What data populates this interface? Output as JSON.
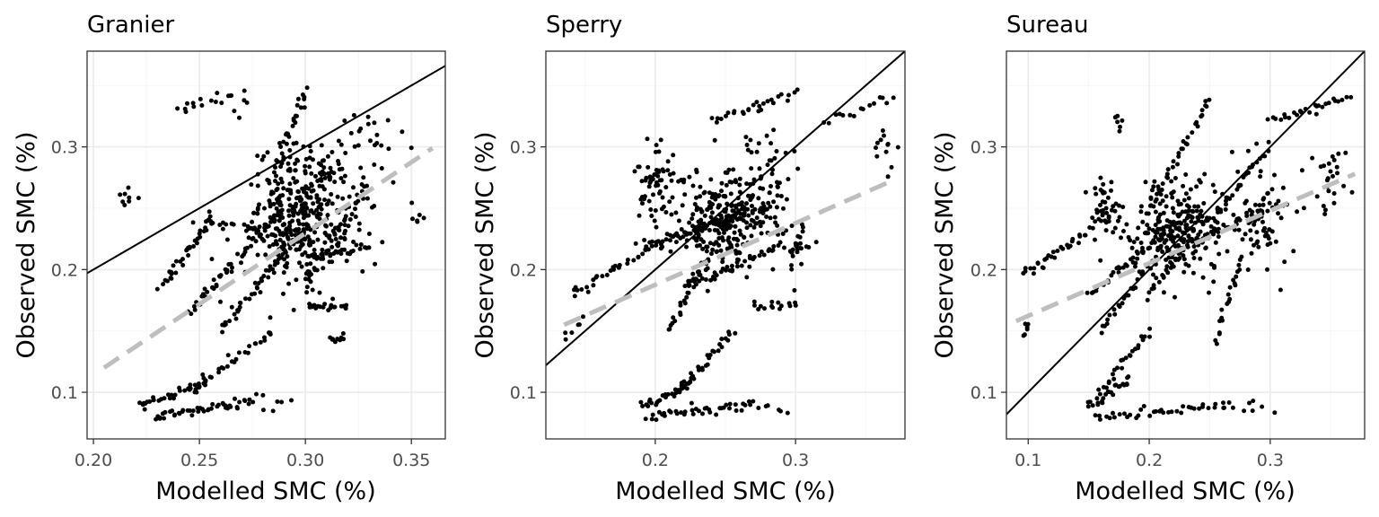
{
  "chart_data": [
    {
      "type": "scatter",
      "title": "Granier",
      "xlabel": "Modelled SMC (%)",
      "ylabel": "Observed SMC (%)",
      "xlim": [
        0.197,
        0.366
      ],
      "ylim": [
        0.062,
        0.378
      ],
      "xticks": [
        0.2,
        0.25,
        0.3,
        0.35
      ],
      "xtick_labels": [
        "0.20",
        "0.25",
        "0.30",
        "0.35"
      ],
      "yticks": [
        0.1,
        0.2,
        0.3
      ],
      "ytick_labels": [
        "0.1",
        "0.2",
        "0.3"
      ],
      "identity_line": [
        [
          0.197,
          0.197
        ],
        [
          0.366,
          0.366
        ]
      ],
      "regression_line": [
        [
          0.205,
          0.12
        ],
        [
          0.36,
          0.299
        ]
      ],
      "colors": {
        "points": "#000000",
        "identity": "#000000",
        "regression": "#bebebe"
      },
      "grid": true,
      "clusters": [
        {
          "kind": "segment",
          "from": [
            0.228,
            0.08
          ],
          "to": [
            0.275,
            0.092
          ],
          "n": 45
        },
        {
          "kind": "segment",
          "from": [
            0.222,
            0.088
          ],
          "to": [
            0.255,
            0.11
          ],
          "n": 35
        },
        {
          "kind": "segment",
          "from": [
            0.245,
            0.1
          ],
          "to": [
            0.285,
            0.15
          ],
          "n": 30
        },
        {
          "kind": "segment",
          "from": [
            0.26,
            0.15
          ],
          "to": [
            0.3,
            0.235
          ],
          "n": 45
        },
        {
          "kind": "segment",
          "from": [
            0.245,
            0.165
          ],
          "to": [
            0.29,
            0.25
          ],
          "n": 50
        },
        {
          "kind": "segment",
          "from": [
            0.232,
            0.185
          ],
          "to": [
            0.255,
            0.24
          ],
          "n": 35
        },
        {
          "kind": "segment",
          "from": [
            0.25,
            0.24
          ],
          "to": [
            0.3,
            0.225
          ],
          "n": 30
        },
        {
          "kind": "segment",
          "from": [
            0.3,
            0.17
          ],
          "to": [
            0.32,
            0.17
          ],
          "n": 20
        },
        {
          "kind": "segment",
          "from": [
            0.312,
            0.145
          ],
          "to": [
            0.318,
            0.14
          ],
          "n": 8
        },
        {
          "kind": "segment",
          "from": [
            0.3,
            0.19
          ],
          "to": [
            0.33,
            0.27
          ],
          "n": 40
        },
        {
          "kind": "segment",
          "from": [
            0.24,
            0.33
          ],
          "to": [
            0.256,
            0.34
          ],
          "n": 10
        },
        {
          "kind": "segment",
          "from": [
            0.285,
            0.28
          ],
          "to": [
            0.3,
            0.345
          ],
          "n": 30
        },
        {
          "kind": "segment",
          "from": [
            0.305,
            0.21
          ],
          "to": [
            0.33,
            0.22
          ],
          "n": 20
        },
        {
          "kind": "cloud",
          "center": [
            0.3,
            0.255
          ],
          "spread": [
            0.018,
            0.038
          ],
          "n": 260
        },
        {
          "kind": "cloud",
          "center": [
            0.295,
            0.22
          ],
          "spread": [
            0.028,
            0.04
          ],
          "n": 130
        },
        {
          "kind": "cloud",
          "center": [
            0.212,
            0.255
          ],
          "spread": [
            0.008,
            0.008
          ],
          "n": 8
        },
        {
          "kind": "cloud",
          "center": [
            0.33,
            0.3
          ],
          "spread": [
            0.015,
            0.03
          ],
          "n": 25
        },
        {
          "kind": "cloud",
          "center": [
            0.285,
            0.09
          ],
          "spread": [
            0.012,
            0.008
          ],
          "n": 8
        },
        {
          "kind": "cloud",
          "center": [
            0.265,
            0.34
          ],
          "spread": [
            0.012,
            0.015
          ],
          "n": 10
        },
        {
          "kind": "cloud",
          "center": [
            0.35,
            0.245
          ],
          "spread": [
            0.008,
            0.015
          ],
          "n": 6
        }
      ]
    },
    {
      "type": "scatter",
      "title": "Sperry",
      "xlabel": "Modelled SMC (%)",
      "ylabel": "Observed SMC (%)",
      "xlim": [
        0.122,
        0.378
      ],
      "ylim": [
        0.062,
        0.378
      ],
      "xticks": [
        0.2,
        0.3
      ],
      "xtick_labels": [
        "0.2",
        "0.3"
      ],
      "yticks": [
        0.1,
        0.2,
        0.3
      ],
      "ytick_labels": [
        "0.1",
        "0.2",
        "0.3"
      ],
      "identity_line": [
        [
          0.122,
          0.122
        ],
        [
          0.378,
          0.378
        ]
      ],
      "regression_line": [
        [
          0.135,
          0.155
        ],
        [
          0.368,
          0.272
        ]
      ],
      "colors": {
        "points": "#000000",
        "identity": "#000000",
        "regression": "#bebebe"
      },
      "grid": true,
      "clusters": [
        {
          "kind": "segment",
          "from": [
            0.195,
            0.08
          ],
          "to": [
            0.27,
            0.09
          ],
          "n": 40
        },
        {
          "kind": "segment",
          "from": [
            0.19,
            0.088
          ],
          "to": [
            0.23,
            0.11
          ],
          "n": 30
        },
        {
          "kind": "segment",
          "from": [
            0.215,
            0.1
          ],
          "to": [
            0.255,
            0.15
          ],
          "n": 30
        },
        {
          "kind": "segment",
          "from": [
            0.135,
            0.145
          ],
          "to": [
            0.15,
            0.16
          ],
          "n": 6
        },
        {
          "kind": "segment",
          "from": [
            0.14,
            0.18
          ],
          "to": [
            0.22,
            0.23
          ],
          "n": 40
        },
        {
          "kind": "segment",
          "from": [
            0.19,
            0.22
          ],
          "to": [
            0.28,
            0.25
          ],
          "n": 50
        },
        {
          "kind": "segment",
          "from": [
            0.21,
            0.15
          ],
          "to": [
            0.24,
            0.215
          ],
          "n": 30
        },
        {
          "kind": "segment",
          "from": [
            0.22,
            0.185
          ],
          "to": [
            0.29,
            0.22
          ],
          "n": 40
        },
        {
          "kind": "segment",
          "from": [
            0.27,
            0.17
          ],
          "to": [
            0.3,
            0.17
          ],
          "n": 15
        },
        {
          "kind": "segment",
          "from": [
            0.24,
            0.32
          ],
          "to": [
            0.3,
            0.345
          ],
          "n": 25
        },
        {
          "kind": "segment",
          "from": [
            0.32,
            0.32
          ],
          "to": [
            0.37,
            0.34
          ],
          "n": 15
        },
        {
          "kind": "cloud",
          "center": [
            0.245,
            0.24
          ],
          "spread": [
            0.03,
            0.035
          ],
          "n": 230
        },
        {
          "kind": "cloud",
          "center": [
            0.2,
            0.27
          ],
          "spread": [
            0.012,
            0.025
          ],
          "n": 60
        },
        {
          "kind": "cloud",
          "center": [
            0.275,
            0.27
          ],
          "spread": [
            0.025,
            0.04
          ],
          "n": 70
        },
        {
          "kind": "cloud",
          "center": [
            0.3,
            0.22
          ],
          "spread": [
            0.012,
            0.02
          ],
          "n": 30
        },
        {
          "kind": "cloud",
          "center": [
            0.36,
            0.3
          ],
          "spread": [
            0.01,
            0.02
          ],
          "n": 12
        },
        {
          "kind": "cloud",
          "center": [
            0.28,
            0.088
          ],
          "spread": [
            0.01,
            0.008
          ],
          "n": 6
        }
      ]
    },
    {
      "type": "scatter",
      "title": "Sureau",
      "xlabel": "Modelled SMC (%)",
      "ylabel": "Observed SMC (%)",
      "xlim": [
        0.082,
        0.378
      ],
      "ylim": [
        0.062,
        0.378
      ],
      "xticks": [
        0.1,
        0.2,
        0.3
      ],
      "xtick_labels": [
        "0.1",
        "0.2",
        "0.3"
      ],
      "yticks": [
        0.1,
        0.2,
        0.3
      ],
      "ytick_labels": [
        "0.1",
        "0.2",
        "0.3"
      ],
      "identity_line": [
        [
          0.082,
          0.082
        ],
        [
          0.378,
          0.378
        ]
      ],
      "regression_line": [
        [
          0.09,
          0.158
        ],
        [
          0.37,
          0.278
        ]
      ],
      "colors": {
        "points": "#000000",
        "identity": "#000000",
        "regression": "#bebebe"
      },
      "grid": true,
      "clusters": [
        {
          "kind": "segment",
          "from": [
            0.095,
            0.145
          ],
          "to": [
            0.1,
            0.155
          ],
          "n": 6
        },
        {
          "kind": "segment",
          "from": [
            0.095,
            0.195
          ],
          "to": [
            0.15,
            0.23
          ],
          "n": 30
        },
        {
          "kind": "segment",
          "from": [
            0.155,
            0.08
          ],
          "to": [
            0.27,
            0.09
          ],
          "n": 40
        },
        {
          "kind": "segment",
          "from": [
            0.15,
            0.088
          ],
          "to": [
            0.185,
            0.11
          ],
          "n": 25
        },
        {
          "kind": "segment",
          "from": [
            0.16,
            0.1
          ],
          "to": [
            0.2,
            0.15
          ],
          "n": 25
        },
        {
          "kind": "segment",
          "from": [
            0.15,
            0.18
          ],
          "to": [
            0.24,
            0.25
          ],
          "n": 45
        },
        {
          "kind": "segment",
          "from": [
            0.16,
            0.15
          ],
          "to": [
            0.22,
            0.23
          ],
          "n": 35
        },
        {
          "kind": "segment",
          "from": [
            0.2,
            0.18
          ],
          "to": [
            0.3,
            0.3
          ],
          "n": 50
        },
        {
          "kind": "segment",
          "from": [
            0.2,
            0.25
          ],
          "to": [
            0.25,
            0.34
          ],
          "n": 35
        },
        {
          "kind": "segment",
          "from": [
            0.23,
            0.22
          ],
          "to": [
            0.3,
            0.25
          ],
          "n": 30
        },
        {
          "kind": "segment",
          "from": [
            0.255,
            0.14
          ],
          "to": [
            0.275,
            0.21
          ],
          "n": 20
        },
        {
          "kind": "segment",
          "from": [
            0.3,
            0.32
          ],
          "to": [
            0.365,
            0.34
          ],
          "n": 25
        },
        {
          "kind": "cloud",
          "center": [
            0.22,
            0.23
          ],
          "spread": [
            0.035,
            0.035
          ],
          "n": 220
        },
        {
          "kind": "cloud",
          "center": [
            0.16,
            0.25
          ],
          "spread": [
            0.012,
            0.02
          ],
          "n": 40
        },
        {
          "kind": "cloud",
          "center": [
            0.29,
            0.24
          ],
          "spread": [
            0.025,
            0.04
          ],
          "n": 80
        },
        {
          "kind": "cloud",
          "center": [
            0.35,
            0.27
          ],
          "spread": [
            0.015,
            0.03
          ],
          "n": 25
        },
        {
          "kind": "cloud",
          "center": [
            0.175,
            0.32
          ],
          "spread": [
            0.008,
            0.008
          ],
          "n": 6
        },
        {
          "kind": "cloud",
          "center": [
            0.285,
            0.088
          ],
          "spread": [
            0.01,
            0.008
          ],
          "n": 6
        }
      ]
    }
  ]
}
